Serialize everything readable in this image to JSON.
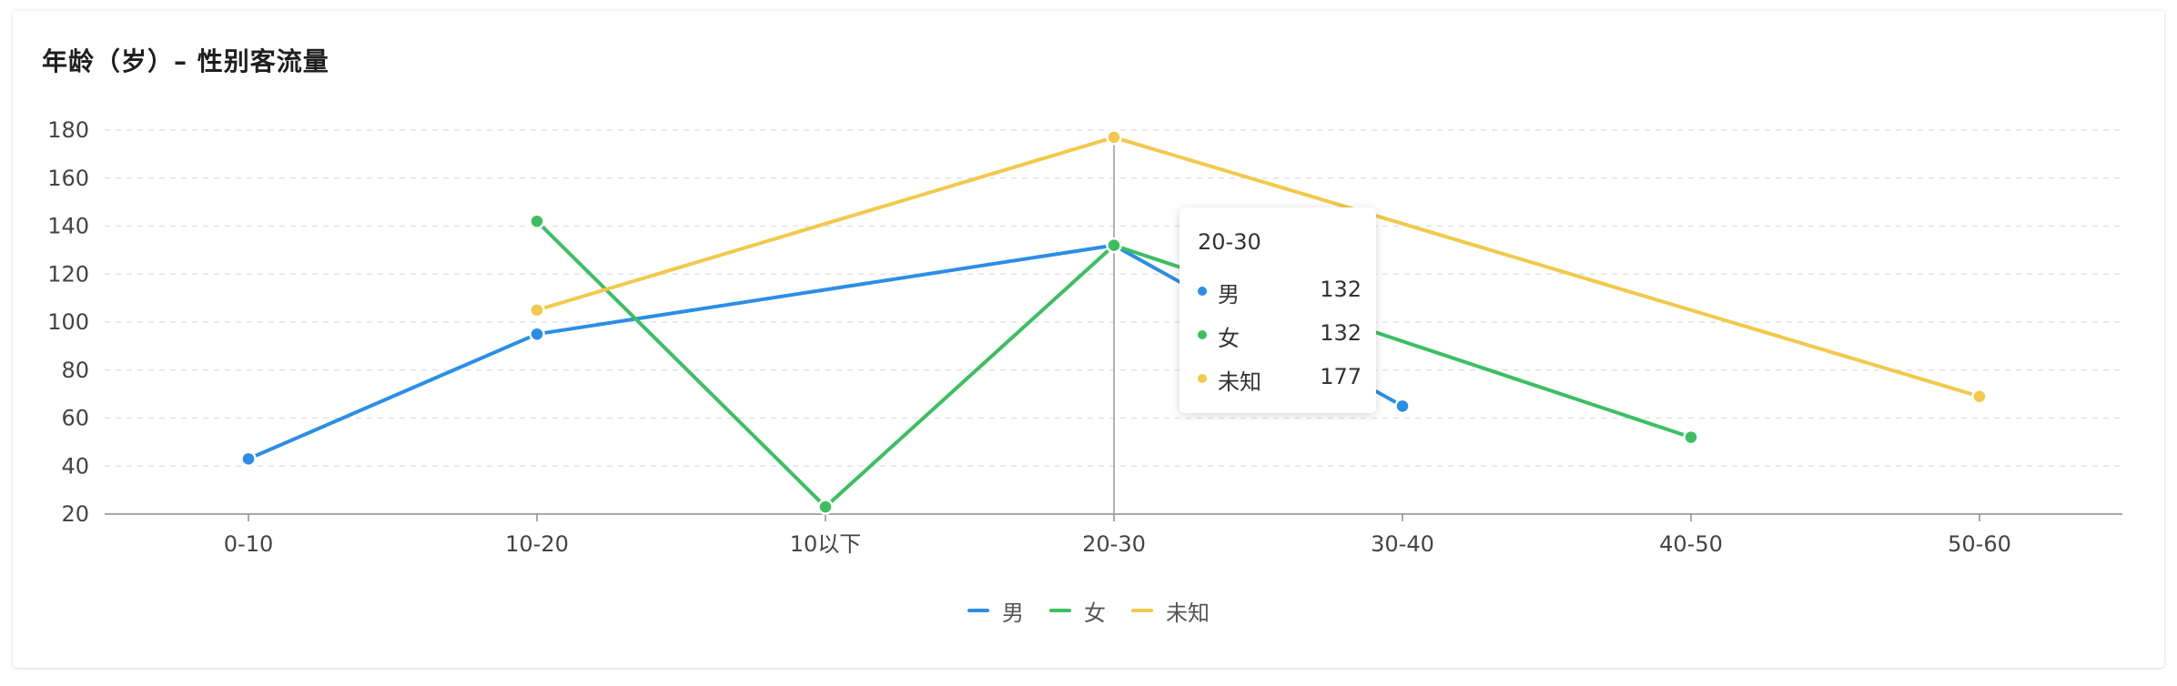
{
  "title": "年龄（岁）– 性别客流量",
  "chart_data": {
    "type": "line",
    "title": "年龄（岁）– 性别客流量",
    "categories": [
      "0-10",
      "10-20",
      "10以下",
      "20-30",
      "30-40",
      "40-50",
      "50-60"
    ],
    "ylim": [
      20,
      180
    ],
    "yticks": [
      20,
      40,
      60,
      80,
      100,
      120,
      140,
      160,
      180
    ],
    "grid": true,
    "legend_position": "bottom",
    "series": [
      {
        "name": "男",
        "color": "#2b8ee6",
        "values": [
          43,
          95,
          null,
          132,
          65,
          null,
          null
        ]
      },
      {
        "name": "女",
        "color": "#3cbf61",
        "values": [
          null,
          142,
          23,
          132,
          null,
          52,
          null
        ]
      },
      {
        "name": "未知",
        "color": "#f2c94c",
        "values": [
          null,
          105,
          null,
          177,
          null,
          null,
          69
        ]
      }
    ]
  },
  "tooltip": {
    "category": "20-30",
    "rows": [
      {
        "name": "男",
        "value": "132",
        "color": "#2b8ee6"
      },
      {
        "name": "女",
        "value": "132",
        "color": "#3cbf61"
      },
      {
        "name": "未知",
        "value": "177",
        "color": "#f2c94c"
      }
    ]
  }
}
